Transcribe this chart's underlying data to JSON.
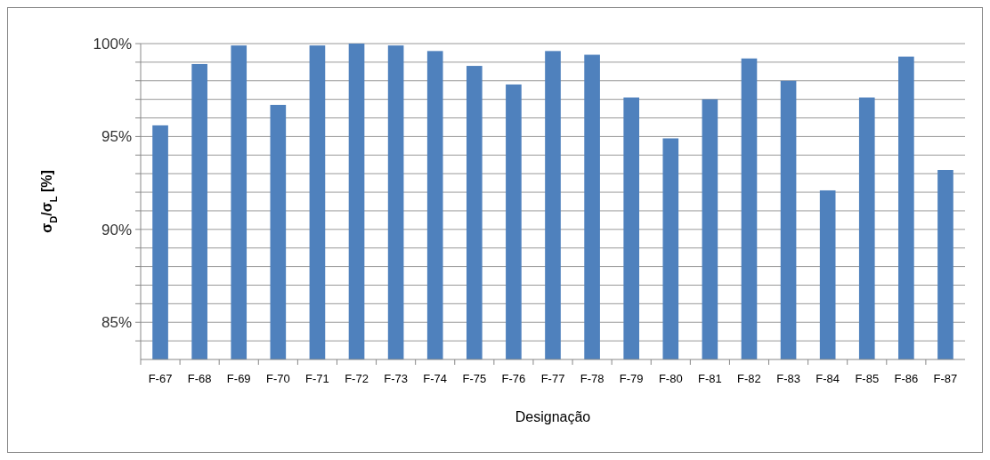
{
  "chart_data": {
    "type": "bar",
    "xlabel": "Designação",
    "ylabel": "σ$_{D}$/σ$_{L}$ [%]",
    "categories": [
      "F-67",
      "F-68",
      "F-69",
      "F-70",
      "F-71",
      "F-72",
      "F-73",
      "F-74",
      "F-75",
      "F-76",
      "F-77",
      "F-78",
      "F-79",
      "F-80",
      "F-81",
      "F-82",
      "F-83",
      "F-84",
      "F-85",
      "F-86",
      "F-87"
    ],
    "series": [
      {
        "color": "#4f81bd",
        "values": [
          95.6,
          98.9,
          99.9,
          96.7,
          99.9,
          100,
          99.9,
          99.6,
          98.8,
          97.8,
          99.6,
          99.4,
          97.1,
          94.9,
          97.0,
          99.2,
          98.0,
          92.1,
          97.1,
          99.3,
          93.2
        ]
      }
    ],
    "ylim": [
      83,
      100
    ],
    "yticks": [
      {
        "value": 84,
        "label": null
      },
      {
        "value": 85,
        "label": "85%"
      },
      {
        "value": 86,
        "label": null
      },
      {
        "value": 87,
        "label": null
      },
      {
        "value": 88,
        "label": null
      },
      {
        "value": 89,
        "label": null
      },
      {
        "value": 90,
        "label": "90%"
      },
      {
        "value": 91,
        "label": null
      },
      {
        "value": 92,
        "label": null
      },
      {
        "value": 93,
        "label": null
      },
      {
        "value": 94,
        "label": null
      },
      {
        "value": 95,
        "label": "95%"
      },
      {
        "value": 96,
        "label": null
      },
      {
        "value": 97,
        "label": null
      },
      {
        "value": 98,
        "label": null
      },
      {
        "value": 99,
        "label": null
      },
      {
        "value": 100,
        "label": "100%"
      }
    ],
    "grid": "y"
  }
}
